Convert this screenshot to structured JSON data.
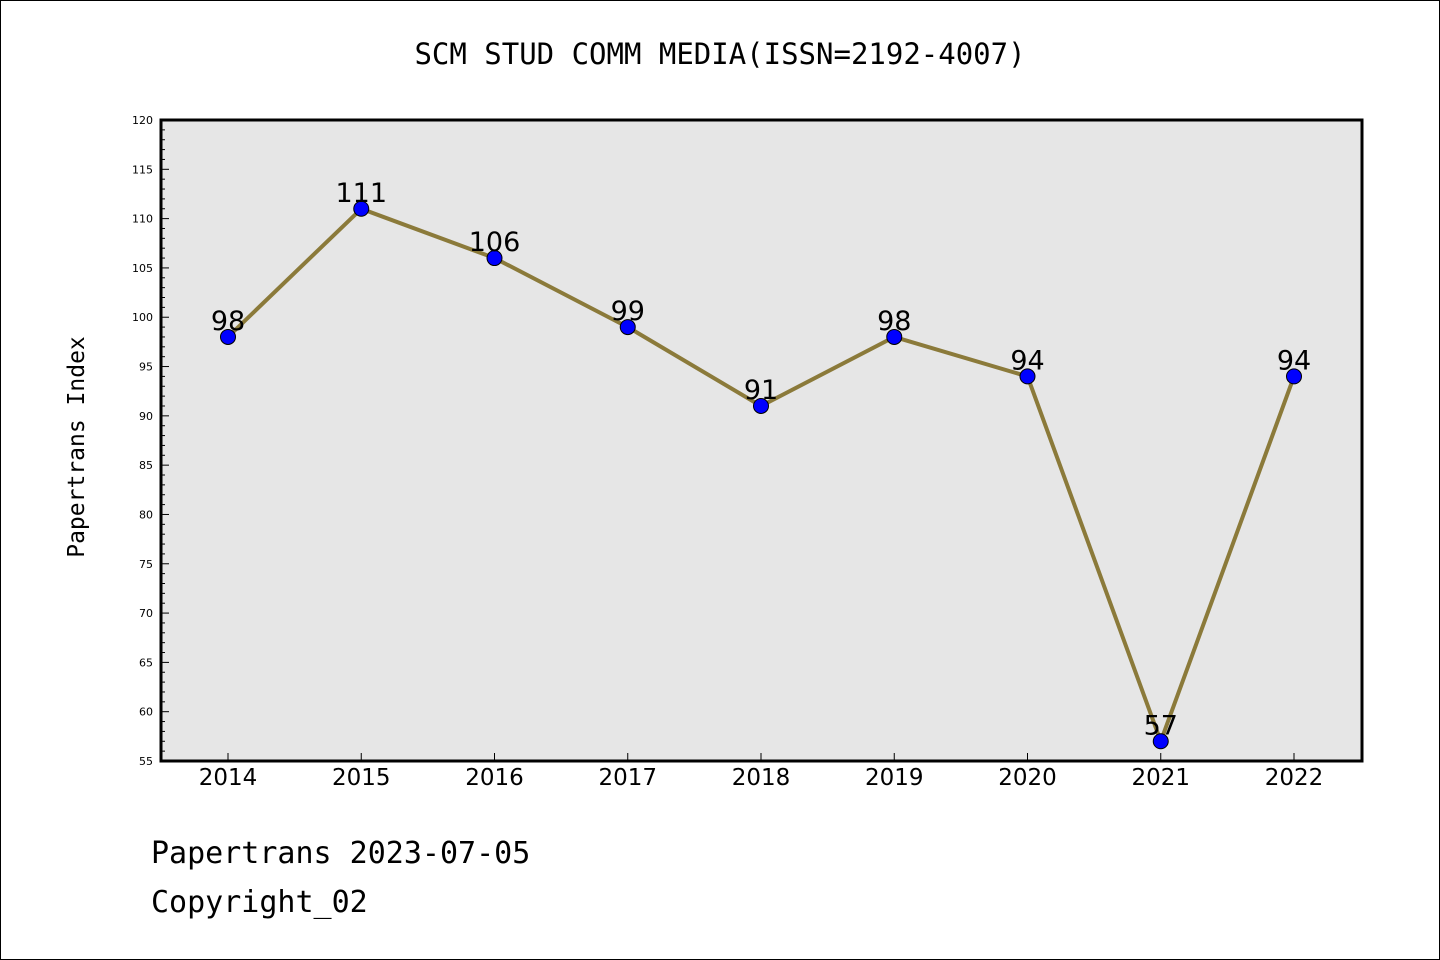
{
  "chart_data": {
    "type": "line",
    "title": "SCM STUD COMM MEDIA(ISSN=2192-4007)",
    "xlabel": "",
    "ylabel": "Papertrans Index",
    "categories": [
      "2014",
      "2015",
      "2016",
      "2017",
      "2018",
      "2019",
      "2020",
      "2021",
      "2022"
    ],
    "series": [
      {
        "values": [
          98,
          111,
          106,
          99,
          91,
          98,
          94,
          57,
          94
        ]
      }
    ],
    "data_labels": [
      "98",
      "111",
      "106",
      "99",
      "91",
      "98",
      "94",
      "57",
      "94"
    ],
    "ylim": [
      55,
      120
    ],
    "y_ticks": [
      "55",
      "60",
      "65",
      "70",
      "75",
      "80",
      "85",
      "90",
      "95",
      "100",
      "105",
      "110",
      "115",
      "120"
    ],
    "grid": false,
    "legend": "none",
    "colors": {
      "line": "#8B7A3A",
      "marker": "#0000FF",
      "plot_background": "#E6E6E6"
    }
  },
  "footer": {
    "line1": "Papertrans 2023-07-05",
    "line2": "Copyright_02"
  }
}
